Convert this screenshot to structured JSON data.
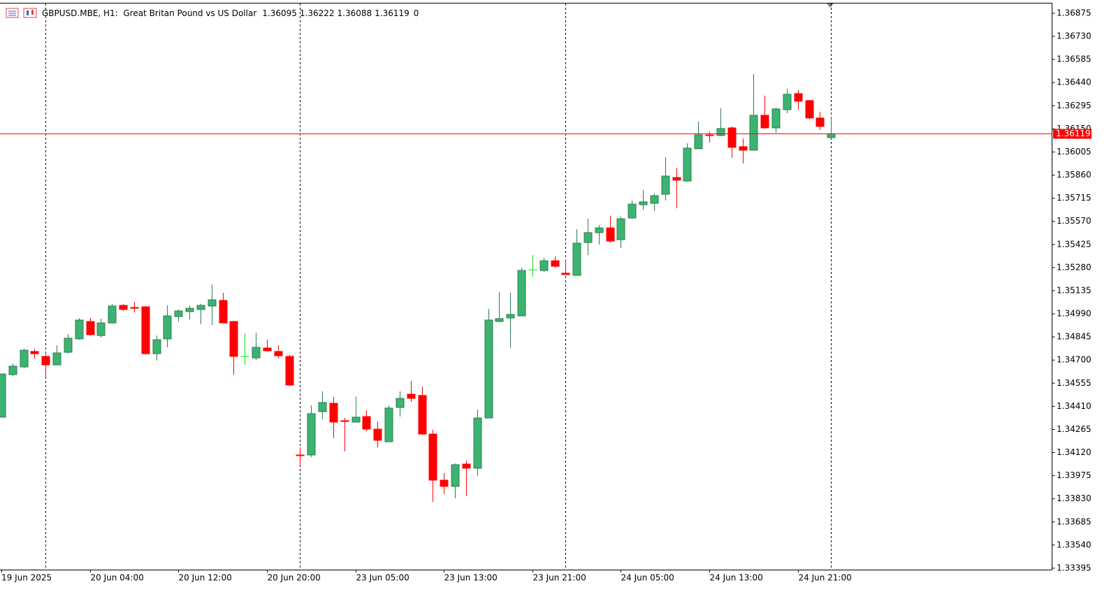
{
  "chart_data": {
    "type": "candlestick",
    "title": "GBPUSD.MBE, H1:  Great Britan Pound vs US Dollar",
    "title_suffix": "0",
    "categories": [
      "19 Jun 2025",
      null,
      null,
      null,
      null,
      null,
      null,
      null,
      "20 Jun 04:00",
      null,
      null,
      null,
      null,
      null,
      null,
      null,
      "20 Jun 12:00",
      null,
      null,
      null,
      null,
      null,
      null,
      null,
      "20 Jun 20:00",
      null,
      null,
      null,
      null,
      null,
      null,
      null,
      "23 Jun 05:00",
      null,
      null,
      null,
      null,
      null,
      null,
      null,
      "23 Jun 13:00",
      null,
      null,
      null,
      null,
      null,
      null,
      null,
      "23 Jun 21:00",
      null,
      null,
      null,
      null,
      null,
      null,
      null,
      "24 Jun 05:00",
      null,
      null,
      null,
      null,
      null,
      null,
      null,
      "24 Jun 13:00",
      null,
      null,
      null,
      null,
      null,
      null,
      null,
      "24 Jun 21:00",
      null,
      null,
      null
    ],
    "open": [
      1.34342,
      1.34609,
      1.34657,
      1.34754,
      1.34723,
      1.3467,
      1.34749,
      1.34833,
      1.34942,
      1.34854,
      1.34933,
      1.35043,
      1.3503,
      1.35034,
      1.3474,
      1.34833,
      1.34973,
      1.35004,
      1.35017,
      1.35039,
      1.35074,
      1.34942,
      1.34723,
      1.34714,
      1.34776,
      1.34754,
      1.34723,
      1.34105,
      1.34105,
      1.34377,
      1.34429,
      1.3432,
      1.34311,
      1.34346,
      1.34267,
      1.34188,
      1.34403,
      1.34486,
      1.34478,
      1.34236,
      1.33947,
      1.33908,
      1.34048,
      1.34022,
      1.34337,
      1.34942,
      1.34964,
      1.34977,
      1.35266,
      1.35262,
      1.35323,
      1.35245,
      1.35231,
      1.35437,
      1.35499,
      1.35529,
      1.35455,
      1.35591,
      1.35674,
      1.35683,
      1.3574,
      1.35845,
      1.35823,
      1.36025,
      1.36112,
      1.36108,
      1.36156,
      1.36038,
      1.36016,
      1.36235,
      1.36156,
      1.3627,
      1.36371,
      1.36327,
      1.36218,
      1.36095
    ],
    "high": [
      1.34613,
      1.34679,
      1.34771,
      1.34771,
      1.34736,
      1.34793,
      1.34863,
      1.34964,
      1.34964,
      1.3496,
      1.35052,
      1.35052,
      1.35065,
      1.35039,
      1.34854,
      1.35043,
      1.35017,
      1.35043,
      1.35052,
      1.35174,
      1.35122,
      1.34947,
      1.34868,
      1.34872,
      1.34828,
      1.34793,
      1.34732,
      1.34153,
      1.34416,
      1.34504,
      1.34469,
      1.34337,
      1.34469,
      1.34386,
      1.34315,
      1.34416,
      1.34504,
      1.3457,
      1.34535,
      1.34263,
      1.33991,
      1.34052,
      1.3407,
      1.3439,
      1.35021,
      1.35126,
      1.35122,
      1.3528,
      1.35358,
      1.35341,
      1.3535,
      1.35332,
      1.35521,
      1.35586,
      1.35547,
      1.35604,
      1.356,
      1.357,
      1.35766,
      1.35744,
      1.35972,
      1.35906,
      1.3606,
      1.36196,
      1.36134,
      1.36279,
      1.36165,
      1.3609,
      1.36494,
      1.36358,
      1.36283,
      1.36402,
      1.36393,
      1.36332,
      1.36257,
      1.36222
    ],
    "low": [
      1.34342,
      1.346,
      1.34648,
      1.3471,
      1.34591,
      1.3467,
      1.3474,
      1.34828,
      1.34854,
      1.34841,
      1.34929,
      1.35008,
      1.34999,
      1.34736,
      1.34697,
      1.3478,
      1.34942,
      1.34955,
      1.34925,
      1.3492,
      1.34929,
      1.34609,
      1.3467,
      1.34701,
      1.34754,
      1.3471,
      1.34539,
      1.34039,
      1.34092,
      1.34329,
      1.3421,
      1.34127,
      1.34311,
      1.34254,
      1.34153,
      1.34188,
      1.34346,
      1.34438,
      1.34232,
      1.33811,
      1.3386,
      1.33833,
      1.33846,
      1.33974,
      1.34337,
      1.34938,
      1.34776,
      1.34977,
      1.35223,
      1.35253,
      1.3528,
      1.35236,
      1.35231,
      1.35358,
      1.35424,
      1.35437,
      1.35402,
      1.35586,
      1.35643,
      1.35635,
      1.357,
      1.35652,
      1.35819,
      1.36025,
      1.36064,
      1.36104,
      1.35968,
      1.35933,
      1.36016,
      1.36152,
      1.36126,
      1.36248,
      1.3627,
      1.36209,
      1.36143,
      1.36088
    ],
    "close": [
      1.34613,
      1.34662,
      1.34762,
      1.3474,
      1.3467,
      1.34745,
      1.34837,
      1.34951,
      1.34859,
      1.34933,
      1.35039,
      1.35017,
      1.35025,
      1.3474,
      1.34828,
      1.34977,
      1.35008,
      1.35025,
      1.35043,
      1.35078,
      1.34933,
      1.34723,
      1.34723,
      1.3478,
      1.34758,
      1.34727,
      1.34543,
      1.34101,
      1.34364,
      1.34434,
      1.34311,
      1.34315,
      1.34342,
      1.34267,
      1.34197,
      1.34399,
      1.3446,
      1.3446,
      1.34236,
      1.33947,
      1.33908,
      1.34044,
      1.34022,
      1.34337,
      1.34951,
      1.3496,
      1.34986,
      1.35262,
      1.35266,
      1.35323,
      1.35288,
      1.35236,
      1.35433,
      1.35499,
      1.35529,
      1.35446,
      1.35586,
      1.35678,
      1.35692,
      1.35731,
      1.35854,
      1.35828,
      1.36029,
      1.36112,
      1.36108,
      1.36152,
      1.36034,
      1.36016,
      1.36235,
      1.36156,
      1.36275,
      1.36367,
      1.36323,
      1.36218,
      1.36165,
      1.36119
    ],
    "up_color": "#3cb371",
    "down_color": "#ff0000",
    "doji_color": "#00e600",
    "last_price_color": "#ff0000",
    "ylim": [
      1.33386,
      1.36936
    ],
    "yticks": [
      1.36875,
      {
        "value": 1.3673,
        "label": "1.36730"
      },
      1.36585,
      {
        "value": 1.3644,
        "label": "1.36440"
      },
      1.36295,
      {
        "value": 1.3615,
        "label": "1.36150"
      },
      1.36005,
      {
        "value": 1.3586,
        "label": "1.35860"
      },
      1.35715,
      {
        "value": 1.3557,
        "label": "1.35570"
      },
      1.35425,
      {
        "value": 1.3528,
        "label": "1.35280"
      },
      1.35135,
      {
        "value": 1.3499,
        "label": "1.34990"
      },
      1.34845,
      {
        "value": 1.347,
        "label": "1.34700"
      },
      1.34555,
      {
        "value": 1.3441,
        "label": "1.34410"
      },
      1.34265,
      {
        "value": 1.3412,
        "label": "1.34120"
      },
      1.33975,
      {
        "value": 1.3383,
        "label": "1.33830"
      },
      1.33685,
      {
        "value": 1.3354,
        "label": "1.33540"
      },
      1.33395
    ],
    "grid": false
  }
}
